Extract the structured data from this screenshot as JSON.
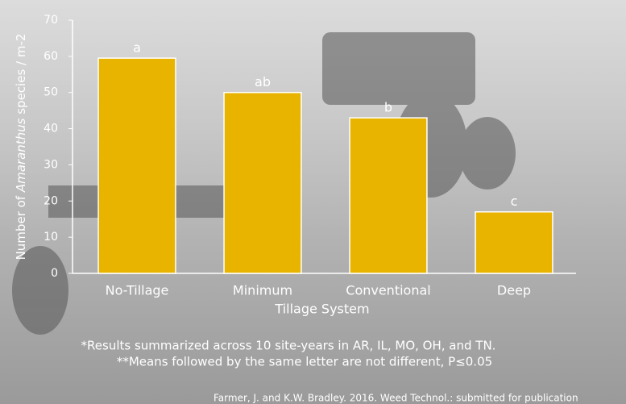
{
  "chart_data": {
    "type": "bar",
    "y_label_parts": [
      "Number of ",
      "Amaranthus",
      " species / m-2"
    ],
    "x_label": "Tillage System",
    "categories": [
      "No-Tillage",
      "Minimum",
      "Conventional",
      "Deep"
    ],
    "values": [
      59.5,
      50,
      43,
      17
    ],
    "letters": [
      "a",
      "ab",
      "b",
      "c"
    ],
    "color": "#e8b400",
    "ylim": [
      0,
      70
    ],
    "yticks": [
      0,
      10,
      20,
      30,
      40,
      50,
      60,
      70
    ],
    "footnotes": [
      "*Results summarized across 10 site-years in AR, IL, MO, OH, and TN.",
      "**Means followed by the same letter are not different, P≤0.05"
    ],
    "citation": "Farmer, J. and K.W. Bradley. 2016. Weed Technol.: submitted for publication"
  }
}
